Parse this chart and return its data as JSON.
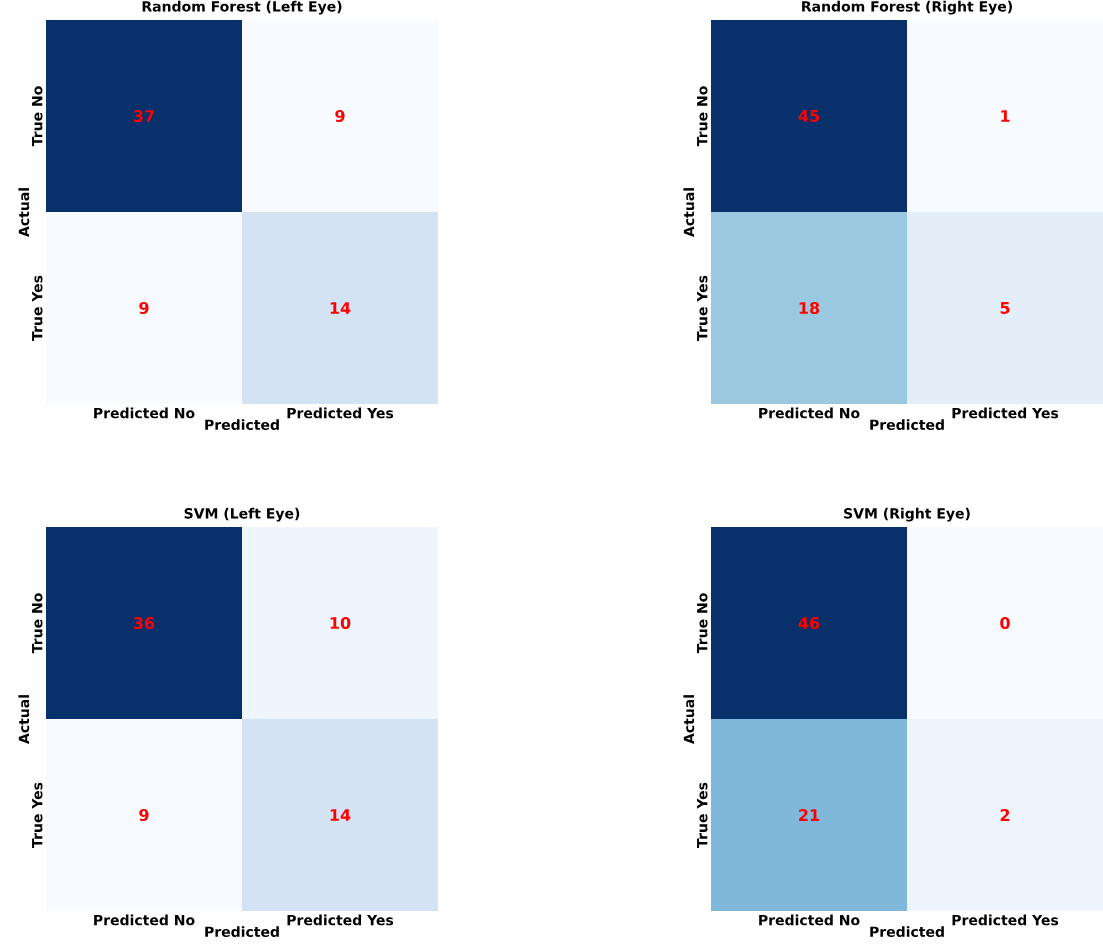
{
  "chart_data": [
    {
      "type": "heatmap",
      "title": "Random Forest (Left Eye)",
      "xlabel": "Predicted",
      "ylabel": "Actual",
      "categories": [
        "Predicted No",
        "Predicted Yes"
      ],
      "y_categories": [
        "True No",
        "True Yes"
      ],
      "cells": [
        [
          37,
          9
        ],
        [
          9,
          14
        ]
      ],
      "colors": [
        [
          "#08306b",
          "#f7fbff"
        ],
        [
          "#f7fbff",
          "#d3e3f3"
        ]
      ],
      "data_labels": true
    },
    {
      "type": "heatmap",
      "title": "Random Forest (Right Eye)",
      "xlabel": "Predicted",
      "ylabel": "Actual",
      "categories": [
        "Predicted No",
        "Predicted Yes"
      ],
      "y_categories": [
        "True No",
        "True Yes"
      ],
      "cells": [
        [
          45,
          1
        ],
        [
          18,
          5
        ]
      ],
      "colors": [
        [
          "#08306b",
          "#f7fbff"
        ],
        [
          "#9ac8e0",
          "#e3eef9"
        ]
      ],
      "data_labels": true
    },
    {
      "type": "heatmap",
      "title": "SVM (Left Eye)",
      "xlabel": "Predicted",
      "ylabel": "Actual",
      "categories": [
        "Predicted No",
        "Predicted Yes"
      ],
      "y_categories": [
        "True No",
        "True Yes"
      ],
      "cells": [
        [
          36,
          10
        ],
        [
          9,
          14
        ]
      ],
      "colors": [
        [
          "#08306b",
          "#eef5fc"
        ],
        [
          "#f7fbff",
          "#d3e3f3"
        ]
      ],
      "data_labels": true
    },
    {
      "type": "heatmap",
      "title": "SVM (Right Eye)",
      "xlabel": "Predicted",
      "ylabel": "Actual",
      "categories": [
        "Predicted No",
        "Predicted Yes"
      ],
      "y_categories": [
        "True No",
        "True Yes"
      ],
      "cells": [
        [
          46,
          0
        ],
        [
          21,
          2
        ]
      ],
      "colors": [
        [
          "#08306b",
          "#f7fbff"
        ],
        [
          "#7fb8da",
          "#edf4fc"
        ]
      ],
      "data_labels": true
    }
  ]
}
